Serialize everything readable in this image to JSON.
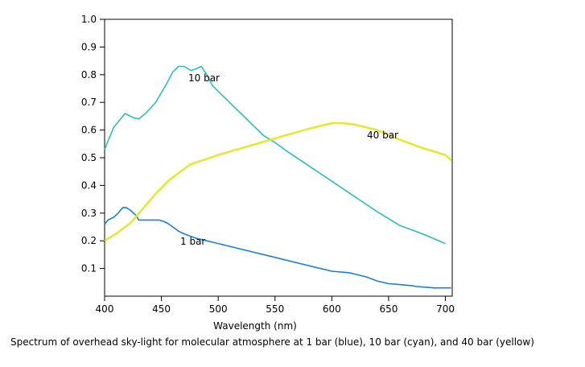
{
  "chart_data": {
    "type": "line",
    "title": "",
    "xlabel": "Wavelength (nm)",
    "ylabel": "",
    "xlim": [
      400,
      706
    ],
    "ylim": [
      0,
      1.0
    ],
    "x_ticks": [
      "400",
      "450",
      "500",
      "550",
      "600",
      "650",
      "700"
    ],
    "y_ticks": [
      "0.1",
      "0.2",
      "0.3",
      "0.4",
      "0.5",
      "0.6",
      "0.7",
      "0.8",
      "0.9",
      "1.0"
    ],
    "grid": false,
    "caption": "Spectrum of overhead sky-light for molecular atmosphere at 1 bar (blue), 10 bar (cyan), and 40 bar (yellow)",
    "series": [
      {
        "name": "1 bar",
        "color": "#1a7fd6",
        "x": [
          400,
          403,
          408,
          412,
          416,
          419,
          423,
          428,
          430,
          435,
          445,
          448,
          452,
          456,
          460,
          465,
          470,
          480,
          500,
          520,
          550,
          580,
          600,
          615,
          620,
          630,
          640,
          650,
          660,
          670,
          675,
          680,
          690,
          700,
          705
        ],
        "y": [
          0.26,
          0.275,
          0.285,
          0.3,
          0.32,
          0.32,
          0.31,
          0.29,
          0.275,
          0.275,
          0.275,
          0.275,
          0.27,
          0.262,
          0.25,
          0.235,
          0.225,
          0.21,
          0.19,
          0.17,
          0.14,
          0.11,
          0.09,
          0.085,
          0.08,
          0.07,
          0.055,
          0.045,
          0.042,
          0.038,
          0.035,
          0.033,
          0.03,
          0.03,
          0.03
        ]
      },
      {
        "name": "10 bar",
        "color": "#2bbdbd",
        "x": [
          400,
          408,
          418,
          425,
          430,
          436,
          445,
          455,
          460,
          465,
          470,
          476,
          480,
          485,
          490,
          495,
          500,
          510,
          520,
          530,
          540,
          550,
          560,
          580,
          600,
          620,
          640,
          660,
          680,
          700
        ],
        "y": [
          0.53,
          0.61,
          0.66,
          0.645,
          0.64,
          0.66,
          0.7,
          0.77,
          0.81,
          0.83,
          0.83,
          0.815,
          0.82,
          0.83,
          0.8,
          0.76,
          0.74,
          0.7,
          0.66,
          0.62,
          0.58,
          0.555,
          0.525,
          0.47,
          0.415,
          0.36,
          0.305,
          0.255,
          0.225,
          0.19
        ]
      },
      {
        "name": "40 bar",
        "color": "#e6e62a",
        "x": [
          400,
          410,
          423,
          445,
          457,
          475,
          500,
          550,
          580,
          600,
          610,
          620,
          640,
          660,
          680,
          700,
          705
        ],
        "y": [
          0.2,
          0.225,
          0.265,
          0.37,
          0.42,
          0.475,
          0.51,
          0.57,
          0.605,
          0.625,
          0.625,
          0.62,
          0.6,
          0.565,
          0.535,
          0.51,
          0.49
        ]
      }
    ]
  }
}
